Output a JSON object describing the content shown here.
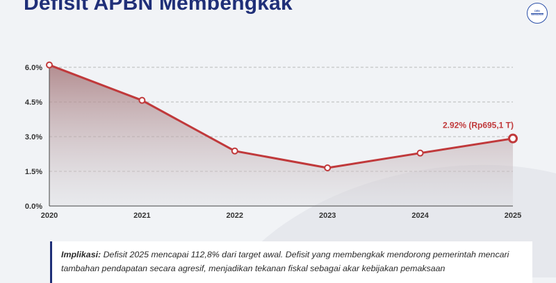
{
  "header": {
    "title": "Defisit APBN Membengkak",
    "badge_line1": "DEN",
    "badge_line2": "08/04/2025"
  },
  "colors": {
    "title": "#1f2f78",
    "line": "#c0393b",
    "area_top": "#a87b7e",
    "grid": "#b8b8b8"
  },
  "chart_data": {
    "type": "area",
    "title": "",
    "xlabel": "",
    "ylabel": "",
    "x": [
      "2020",
      "2021",
      "2022",
      "2023",
      "2024",
      "2025"
    ],
    "series": [
      {
        "values": [
          6.1,
          4.57,
          2.38,
          1.65,
          2.29,
          2.92
        ]
      }
    ],
    "ylim": [
      0,
      6.0
    ],
    "yticks": [
      "0.0%",
      "1.5%",
      "3.0%",
      "4.5%",
      "6.0%"
    ],
    "ytick_values": [
      0,
      1.5,
      3.0,
      4.5,
      6.0
    ],
    "grid": "dashed horizontal",
    "annotation": {
      "x": "2025",
      "text": "2.92% (Rp695,1 T)"
    }
  },
  "note": {
    "lead": "Implikasi:",
    "text": " Defisit 2025 mencapai 112,8% dari target awal. Defisit yang membengkak mendorong pemerintah mencari tambahan pendapatan secara agresif, menjadikan tekanan fiskal sebagai akar kebijakan pemaksaan"
  }
}
